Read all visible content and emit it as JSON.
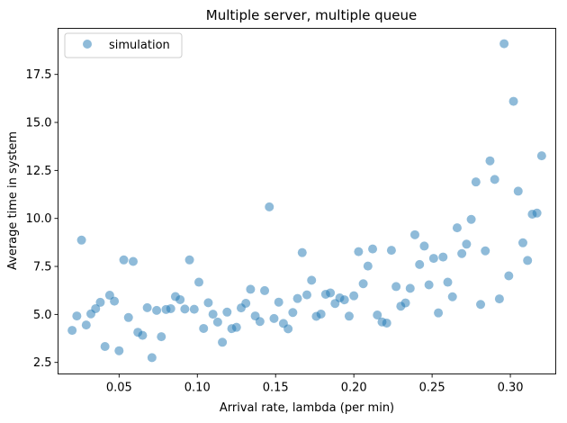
{
  "chart_data": {
    "type": "scatter",
    "title": "Multiple server, multiple queue",
    "xlabel": "Arrival rate, lambda (per min)",
    "ylabel": "Average time in system",
    "xlim": [
      0.011,
      0.329
    ],
    "ylim": [
      1.9,
      19.9
    ],
    "xticks": [
      0.05,
      0.1,
      0.15,
      0.2,
      0.25,
      0.3
    ],
    "xtick_labels": [
      "0.05",
      "0.10",
      "0.15",
      "0.20",
      "0.25",
      "0.30"
    ],
    "yticks": [
      2.5,
      5.0,
      7.5,
      10.0,
      12.5,
      15.0,
      17.5
    ],
    "ytick_labels": [
      "2.5",
      "5.0",
      "7.5",
      "10.0",
      "12.5",
      "15.0",
      "17.5"
    ],
    "grid": false,
    "legend": {
      "position": "upper-left",
      "entries": [
        "simulation"
      ]
    },
    "series": [
      {
        "name": "simulation",
        "color": "#1f77b4",
        "alpha": 0.5,
        "points": [
          [
            0.02,
            4.17
          ],
          [
            0.023,
            4.92
          ],
          [
            0.026,
            8.87
          ],
          [
            0.029,
            4.45
          ],
          [
            0.032,
            5.03
          ],
          [
            0.035,
            5.3
          ],
          [
            0.038,
            5.63
          ],
          [
            0.041,
            3.33
          ],
          [
            0.044,
            6.0
          ],
          [
            0.047,
            5.69
          ],
          [
            0.05,
            3.11
          ],
          [
            0.053,
            7.84
          ],
          [
            0.056,
            4.84
          ],
          [
            0.059,
            7.76
          ],
          [
            0.062,
            4.07
          ],
          [
            0.065,
            3.91
          ],
          [
            0.068,
            5.35
          ],
          [
            0.071,
            2.75
          ],
          [
            0.074,
            5.21
          ],
          [
            0.077,
            3.84
          ],
          [
            0.08,
            5.26
          ],
          [
            0.083,
            5.3
          ],
          [
            0.086,
            5.93
          ],
          [
            0.089,
            5.77
          ],
          [
            0.092,
            5.28
          ],
          [
            0.095,
            7.84
          ],
          [
            0.098,
            5.27
          ],
          [
            0.101,
            6.68
          ],
          [
            0.104,
            4.27
          ],
          [
            0.107,
            5.61
          ],
          [
            0.11,
            5.01
          ],
          [
            0.113,
            4.6
          ],
          [
            0.116,
            3.55
          ],
          [
            0.119,
            5.12
          ],
          [
            0.122,
            4.26
          ],
          [
            0.125,
            4.33
          ],
          [
            0.128,
            5.34
          ],
          [
            0.131,
            5.58
          ],
          [
            0.134,
            6.31
          ],
          [
            0.137,
            4.92
          ],
          [
            0.14,
            4.63
          ],
          [
            0.143,
            6.24
          ],
          [
            0.146,
            10.6
          ],
          [
            0.149,
            4.79
          ],
          [
            0.152,
            5.64
          ],
          [
            0.155,
            4.53
          ],
          [
            0.158,
            4.25
          ],
          [
            0.161,
            5.1
          ],
          [
            0.164,
            5.83
          ],
          [
            0.167,
            8.22
          ],
          [
            0.17,
            6.02
          ],
          [
            0.173,
            6.78
          ],
          [
            0.176,
            4.9
          ],
          [
            0.179,
            5.02
          ],
          [
            0.182,
            6.05
          ],
          [
            0.185,
            6.12
          ],
          [
            0.188,
            5.57
          ],
          [
            0.191,
            5.86
          ],
          [
            0.194,
            5.76
          ],
          [
            0.197,
            4.91
          ],
          [
            0.2,
            5.97
          ],
          [
            0.203,
            8.27
          ],
          [
            0.206,
            6.6
          ],
          [
            0.209,
            7.52
          ],
          [
            0.212,
            8.41
          ],
          [
            0.215,
            4.97
          ],
          [
            0.218,
            4.61
          ],
          [
            0.221,
            4.55
          ],
          [
            0.224,
            8.34
          ],
          [
            0.227,
            6.45
          ],
          [
            0.23,
            5.43
          ],
          [
            0.233,
            5.6
          ],
          [
            0.236,
            6.36
          ],
          [
            0.239,
            9.15
          ],
          [
            0.242,
            7.6
          ],
          [
            0.245,
            8.56
          ],
          [
            0.248,
            6.54
          ],
          [
            0.251,
            7.92
          ],
          [
            0.254,
            5.08
          ],
          [
            0.257,
            7.99
          ],
          [
            0.26,
            6.68
          ],
          [
            0.263,
            5.92
          ],
          [
            0.266,
            9.51
          ],
          [
            0.269,
            8.17
          ],
          [
            0.272,
            8.66
          ],
          [
            0.275,
            9.95
          ],
          [
            0.278,
            11.9
          ],
          [
            0.281,
            5.52
          ],
          [
            0.284,
            8.31
          ],
          [
            0.287,
            13.0
          ],
          [
            0.29,
            12.03
          ],
          [
            0.293,
            5.81
          ],
          [
            0.296,
            19.1
          ],
          [
            0.299,
            7.01
          ],
          [
            0.302,
            16.1
          ],
          [
            0.305,
            11.42
          ],
          [
            0.308,
            8.73
          ],
          [
            0.311,
            7.81
          ],
          [
            0.314,
            10.22
          ],
          [
            0.317,
            10.28
          ],
          [
            0.32,
            13.26
          ]
        ]
      }
    ]
  }
}
